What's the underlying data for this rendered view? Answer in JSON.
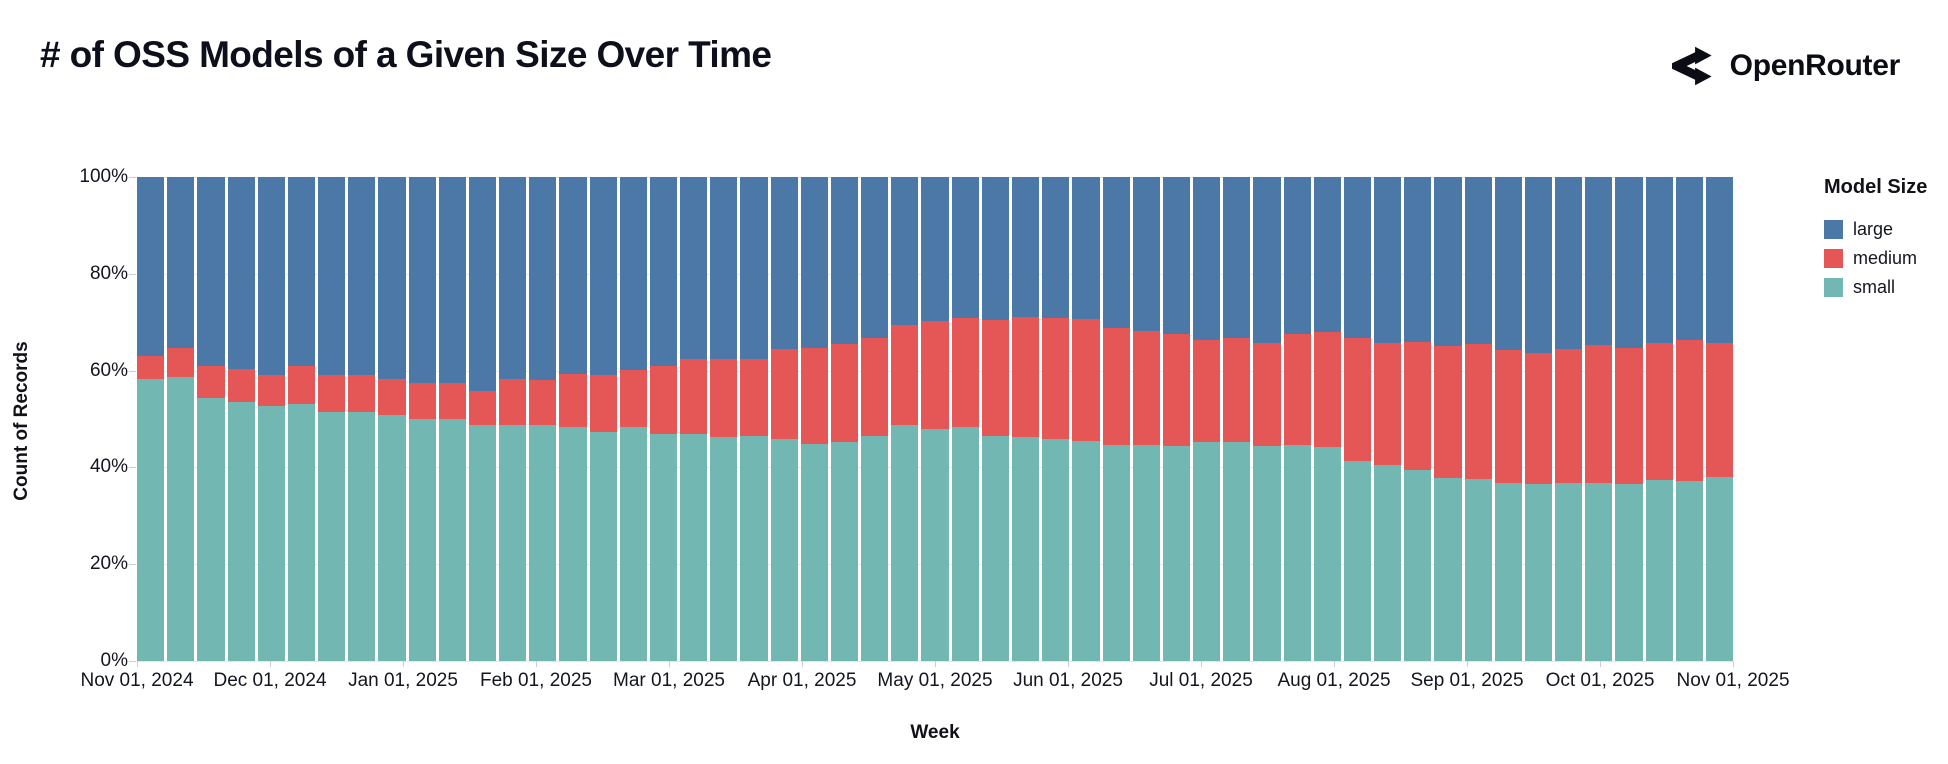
{
  "header": {
    "title": "# of OSS Models of a Given Size Over Time",
    "brand": "OpenRouter"
  },
  "chart_data": {
    "type": "bar",
    "stacked": "100-percent-normalized",
    "title": "# of OSS Models of a Given Size Over Time",
    "xlabel": "Week",
    "ylabel": "Count of Records",
    "ylim": [
      0,
      100
    ],
    "grid": true,
    "y_tick_labels": [
      "0%",
      "20%",
      "40%",
      "60%",
      "80%",
      "100%"
    ],
    "x_tick_labels": [
      "Nov 01, 2024",
      "Dec 01, 2024",
      "Jan 01, 2025",
      "Feb 01, 2025",
      "Mar 01, 2025",
      "Apr 01, 2025",
      "May 01, 2025",
      "Jun 01, 2025",
      "Jul 01, 2025",
      "Aug 01, 2025",
      "Sep 01, 2025",
      "Oct 01, 2025",
      "Nov 01, 2025"
    ],
    "legend": {
      "title": "Model Size",
      "position": "right",
      "entries": [
        {
          "label": "large",
          "color": "#4c78a8"
        },
        {
          "label": "medium",
          "color": "#e45756"
        },
        {
          "label": "small",
          "color": "#72b7b2"
        }
      ]
    },
    "weeks": [
      "2024-10-27",
      "2024-11-03",
      "2024-11-10",
      "2024-11-17",
      "2024-11-24",
      "2024-12-01",
      "2024-12-08",
      "2024-12-15",
      "2024-12-22",
      "2024-12-29",
      "2025-01-05",
      "2025-01-12",
      "2025-01-19",
      "2025-01-26",
      "2025-02-02",
      "2025-02-09",
      "2025-02-16",
      "2025-02-23",
      "2025-03-02",
      "2025-03-09",
      "2025-03-16",
      "2025-03-23",
      "2025-03-30",
      "2025-04-06",
      "2025-04-13",
      "2025-04-20",
      "2025-04-27",
      "2025-05-04",
      "2025-05-11",
      "2025-05-18",
      "2025-05-25",
      "2025-06-01",
      "2025-06-08",
      "2025-06-15",
      "2025-06-22",
      "2025-06-29",
      "2025-07-06",
      "2025-07-13",
      "2025-07-20",
      "2025-07-27",
      "2025-08-03",
      "2025-08-10",
      "2025-08-17",
      "2025-08-24",
      "2025-08-31",
      "2025-09-07",
      "2025-09-14",
      "2025-09-21",
      "2025-09-28",
      "2025-10-05",
      "2025-10-12",
      "2025-10-19",
      "2025-10-26"
    ],
    "series": [
      {
        "name": "small",
        "color": "#72b7b2",
        "values": [
          58.3,
          58.6,
          54.3,
          53.5,
          52.6,
          53.1,
          51.5,
          51.5,
          50.8,
          50.1,
          50.1,
          48.7,
          48.7,
          48.7,
          48.3,
          47.4,
          48.3,
          47.0,
          46.8,
          46.3,
          46.4,
          45.8,
          44.8,
          45.3,
          46.4,
          48.8,
          47.9,
          48.3,
          46.5,
          46.3,
          45.8,
          45.5,
          44.6,
          44.6,
          44.5,
          45.3,
          45.2,
          44.5,
          44.7,
          44.2,
          41.3,
          40.4,
          39.4,
          37.8,
          37.6,
          36.7,
          36.6,
          36.7,
          36.7,
          36.6,
          37.3,
          37.1,
          38.0
        ]
      },
      {
        "name": "medium",
        "color": "#e45756",
        "values": [
          4.7,
          6.1,
          6.7,
          6.9,
          6.4,
          7.8,
          7.6,
          7.6,
          7.5,
          7.3,
          7.3,
          7.1,
          9.6,
          9.3,
          11.1,
          11.6,
          11.9,
          13.9,
          15.7,
          16.2,
          16.1,
          18.7,
          19.8,
          20.1,
          20.3,
          20.6,
          22.3,
          22.5,
          23.9,
          24.8,
          25.0,
          25.1,
          24.3,
          23.5,
          23.0,
          21.1,
          21.6,
          21.1,
          22.8,
          23.8,
          25.5,
          25.4,
          26.5,
          27.3,
          27.8,
          27.5,
          27.1,
          27.8,
          28.5,
          28.1,
          28.3,
          29.2,
          27.8
        ]
      },
      {
        "name": "large",
        "color": "#4c78a8",
        "values": [
          37.0,
          35.3,
          39.0,
          39.6,
          41.0,
          39.1,
          40.9,
          40.9,
          41.7,
          42.6,
          42.6,
          44.2,
          41.7,
          42.0,
          40.6,
          41.0,
          39.8,
          39.1,
          37.5,
          37.5,
          37.5,
          35.5,
          35.4,
          34.6,
          33.3,
          30.6,
          29.8,
          29.2,
          29.6,
          28.9,
          29.2,
          29.4,
          31.1,
          31.9,
          32.5,
          33.6,
          33.2,
          34.4,
          32.5,
          32.0,
          33.2,
          34.2,
          34.1,
          34.9,
          34.6,
          35.8,
          36.3,
          35.5,
          34.8,
          35.3,
          34.4,
          33.7,
          34.2
        ]
      }
    ]
  }
}
